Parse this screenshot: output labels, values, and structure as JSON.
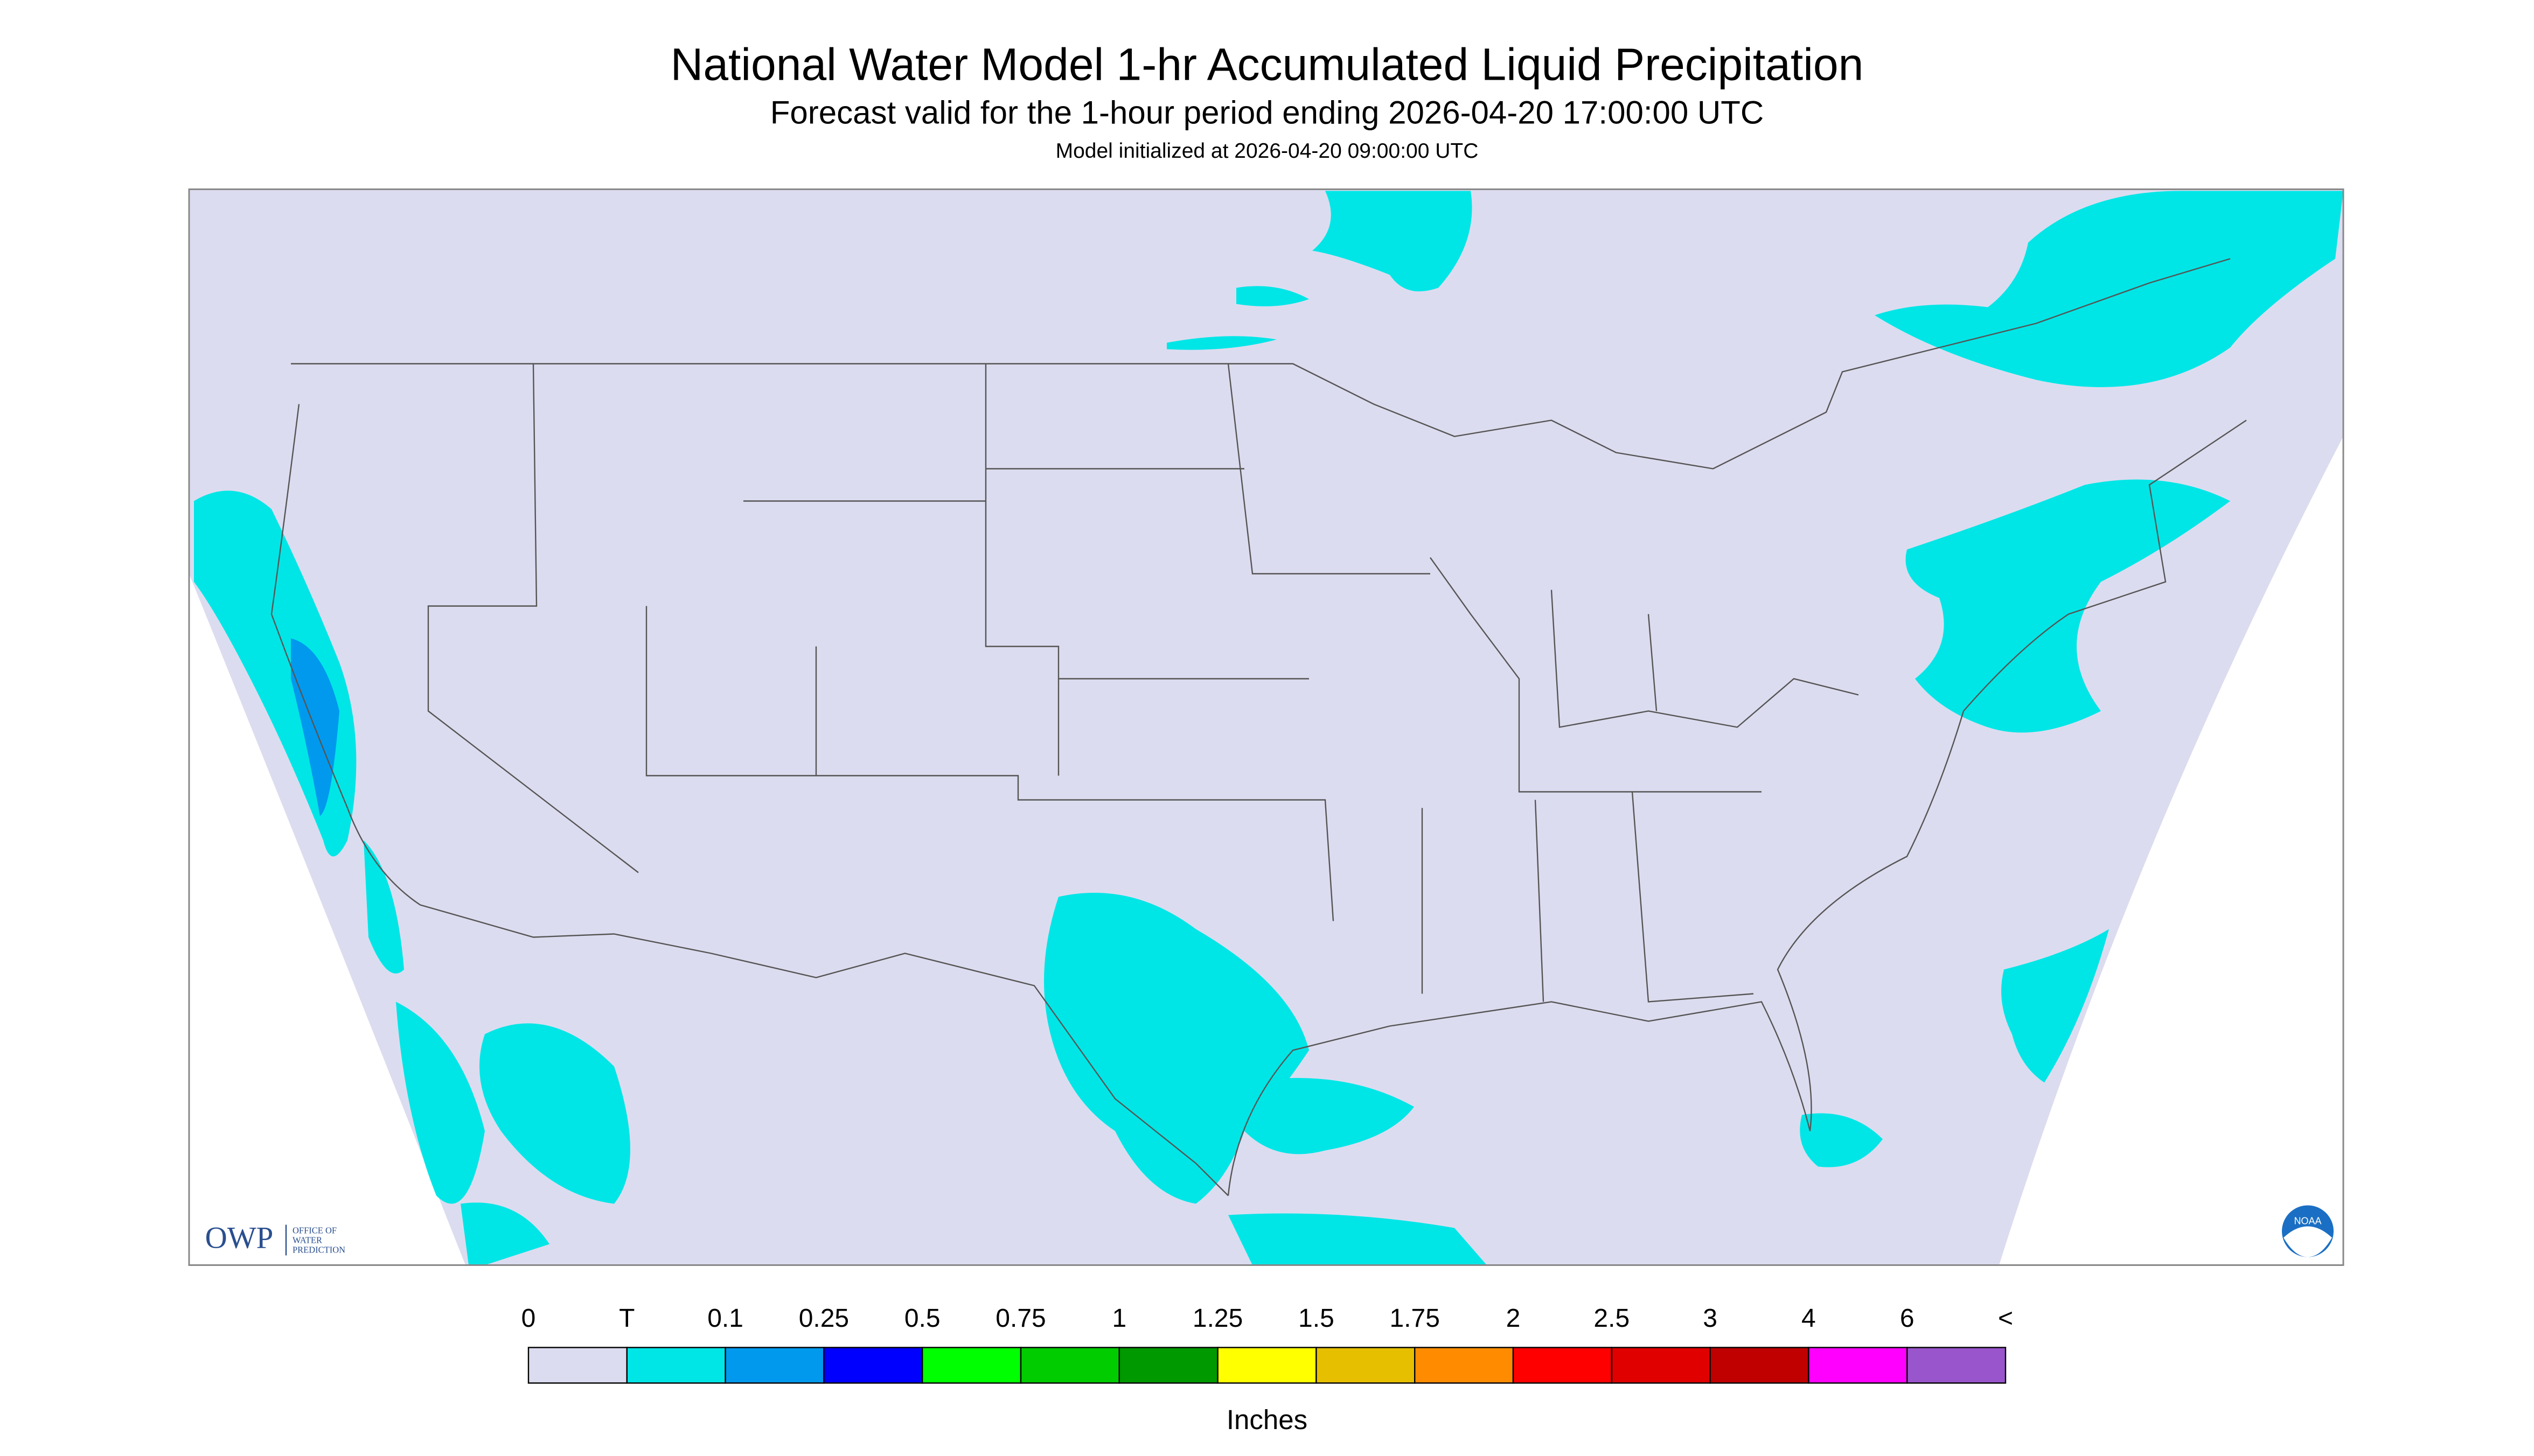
{
  "title": "National Water Model 1-hr Accumulated Liquid Precipitation",
  "subtitle": "Forecast valid for the 1-hour period ending 2026-04-20 17:00:00 UTC",
  "initialized": "Model initialized at 2026-04-20 09:00:00 UTC",
  "legend": {
    "labels": [
      "0",
      "T",
      "0.1",
      "0.25",
      "0.5",
      "0.75",
      "1",
      "1.25",
      "1.5",
      "1.75",
      "2",
      "2.5",
      "3",
      "4",
      "6",
      "<"
    ],
    "colors": [
      "#dcdcf0",
      "#00e6e6",
      "#0099ee",
      "#0000ff",
      "#00ff00",
      "#00cc00",
      "#009900",
      "#ffff00",
      "#e6c000",
      "#ff8c00",
      "#ff0000",
      "#e00000",
      "#c00000",
      "#ff00ff",
      "#9955cc"
    ],
    "units": "Inches"
  },
  "logo": {
    "abbr": "OWP",
    "lines": [
      "OFFICE OF",
      "WATER",
      "PREDICTION"
    ]
  },
  "noaa": "NOAA"
}
